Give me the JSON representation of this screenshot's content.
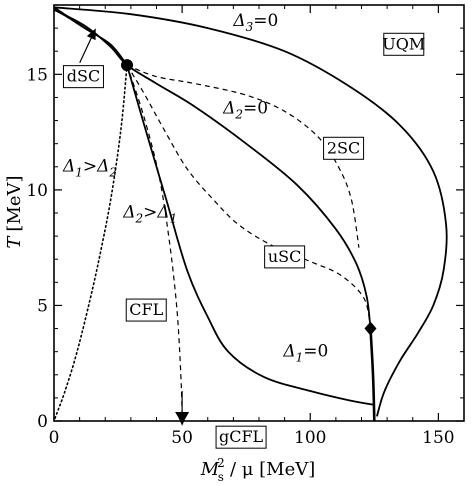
{
  "chart_data": {
    "type": "line",
    "xlabel": "M_s^2 / μ [MeV]",
    "xlabel_parts": {
      "main": "M",
      "sup": "2",
      "sub": "s",
      "rest": "/ μ  [MeV]"
    },
    "ylabel": "T [MeV]",
    "ylabel_parts": {
      "main": "T",
      "unit": "[MeV]"
    },
    "xlim": [
      0,
      160
    ],
    "ylim": [
      0,
      18
    ],
    "xticks": [
      0,
      50,
      100,
      150
    ],
    "yticks": [
      0,
      5,
      10,
      15
    ],
    "xtick_labels": [
      "0",
      "50",
      "100",
      "150"
    ],
    "ytick_labels": [
      "0",
      "5",
      "10",
      "15"
    ],
    "grid": false,
    "legend": "none",
    "series": [
      {
        "style": "solid",
        "x": [
          0,
          12,
          22,
          28.5,
          40,
          55,
          75,
          95,
          110,
          118,
          122,
          123.5
        ],
        "y": [
          17.8,
          17.1,
          16.2,
          15.4,
          14.6,
          13.6,
          12.0,
          10.2,
          8.3,
          6.8,
          5.4,
          4.0
        ]
      },
      {
        "style": "solid",
        "x": [
          123.5,
          124.5,
          125
        ],
        "y": [
          4.0,
          2.0,
          0
        ]
      },
      {
        "style": "solid",
        "x": [
          0,
          30,
          60,
          90,
          115,
          135,
          148,
          153,
          152,
          148,
          142,
          135,
          129,
          126
        ],
        "y": [
          17.9,
          17.6,
          17.0,
          16.0,
          14.5,
          12.8,
          10.8,
          8.5,
          6.5,
          5.0,
          3.8,
          2.6,
          1.3,
          0.2
        ]
      },
      {
        "style": "solid",
        "x": [
          28.5,
          36,
          44,
          52,
          60,
          68,
          82,
          100,
          115,
          125
        ],
        "y": [
          15.4,
          12.5,
          9.5,
          6.5,
          4.5,
          3.0,
          1.9,
          1.3,
          0.9,
          0.7
        ]
      },
      {
        "style": "solid",
        "x": [
          0,
          12,
          22,
          28.5
        ],
        "y": [
          17.9,
          17.0,
          16.3,
          15.4
        ]
      },
      {
        "style": "dashed",
        "x": [
          28.5,
          40,
          55,
          75,
          90,
          103,
          111,
          116,
          119
        ],
        "y": [
          15.4,
          14.9,
          14.6,
          14.1,
          13.4,
          12.3,
          11.0,
          9.6,
          7.5
        ]
      },
      {
        "style": "dashed",
        "x": [
          28.5,
          35,
          43,
          52,
          62,
          72,
          85,
          100,
          112,
          121,
          123.5
        ],
        "y": [
          15.4,
          14.2,
          12.6,
          10.9,
          9.6,
          8.5,
          7.6,
          6.9,
          6.3,
          5.3,
          4.0
        ]
      },
      {
        "style": "dashed",
        "x": [
          28.5,
          35,
          41,
          45,
          48,
          49.5,
          50
        ],
        "y": [
          15.4,
          13.2,
          10.6,
          7.8,
          4.8,
          2.0,
          0.3
        ]
      },
      {
        "style": "dotted",
        "x": [
          28.5,
          26,
          22,
          17,
          12,
          8,
          4,
          1,
          0
        ],
        "y": [
          15.4,
          12.5,
          9.5,
          6.7,
          4.3,
          2.6,
          1.2,
          0.3,
          0
        ]
      },
      {
        "style": "solid",
        "x": [
          0,
          5,
          12,
          17
        ],
        "y": [
          17.8,
          17.5,
          17.0,
          16.7
        ]
      }
    ],
    "markers": [
      {
        "shape": "circle",
        "x": 28.5,
        "y": 15.4
      },
      {
        "shape": "diamond",
        "x": 123.5,
        "y": 4.0
      },
      {
        "shape": "triangle-down",
        "x": 50,
        "y": 0
      }
    ],
    "arrows": [
      {
        "tip_x": 50,
        "tip_y": 0
      },
      {
        "tip_x": 15.5,
        "tip_y": 16.8
      }
    ],
    "annotations": [
      {
        "kind": "gap",
        "name": "delta3",
        "base": "Δ",
        "sub": "3",
        "rest": "=0",
        "x": 70,
        "y": 17.1
      },
      {
        "kind": "gap",
        "name": "delta2",
        "base": "Δ",
        "sub": "2",
        "rest": "=0",
        "x": 66,
        "y": 13.3
      },
      {
        "kind": "gap",
        "name": "delta1",
        "base": "Δ",
        "sub": "1",
        "rest": "=0",
        "x": 89.5,
        "y": 2.8
      },
      {
        "kind": "gap",
        "name": "delta1-gt-delta2",
        "base": "Δ",
        "sub": "1",
        "rest": ">",
        "base2": "Δ",
        "sub2": "2",
        "x": 3.5,
        "y": 10.8
      },
      {
        "kind": "gap",
        "name": "delta2-gt-delta1",
        "base": "Δ",
        "sub": "2",
        "rest": ">",
        "base2": "Δ",
        "sub2": "1",
        "x": 27,
        "y": 8.8
      },
      {
        "kind": "box",
        "name": "uqm",
        "text": "UQM",
        "x": 136.5,
        "y": 16.3
      },
      {
        "kind": "box",
        "name": "2sc",
        "text": "2SC",
        "x": 113,
        "y": 11.8
      },
      {
        "kind": "box",
        "name": "dsc",
        "text": "dSC",
        "x": 11.5,
        "y": 14.9
      },
      {
        "kind": "box",
        "name": "usc",
        "text": "uSC",
        "x": 90,
        "y": 7.1
      },
      {
        "kind": "box",
        "name": "cfl",
        "text": "CFL",
        "x": 36,
        "y": 4.8
      },
      {
        "kind": "box",
        "name": "gcfl",
        "text": "gCFL",
        "x": 73,
        "y": -0.7
      }
    ]
  }
}
